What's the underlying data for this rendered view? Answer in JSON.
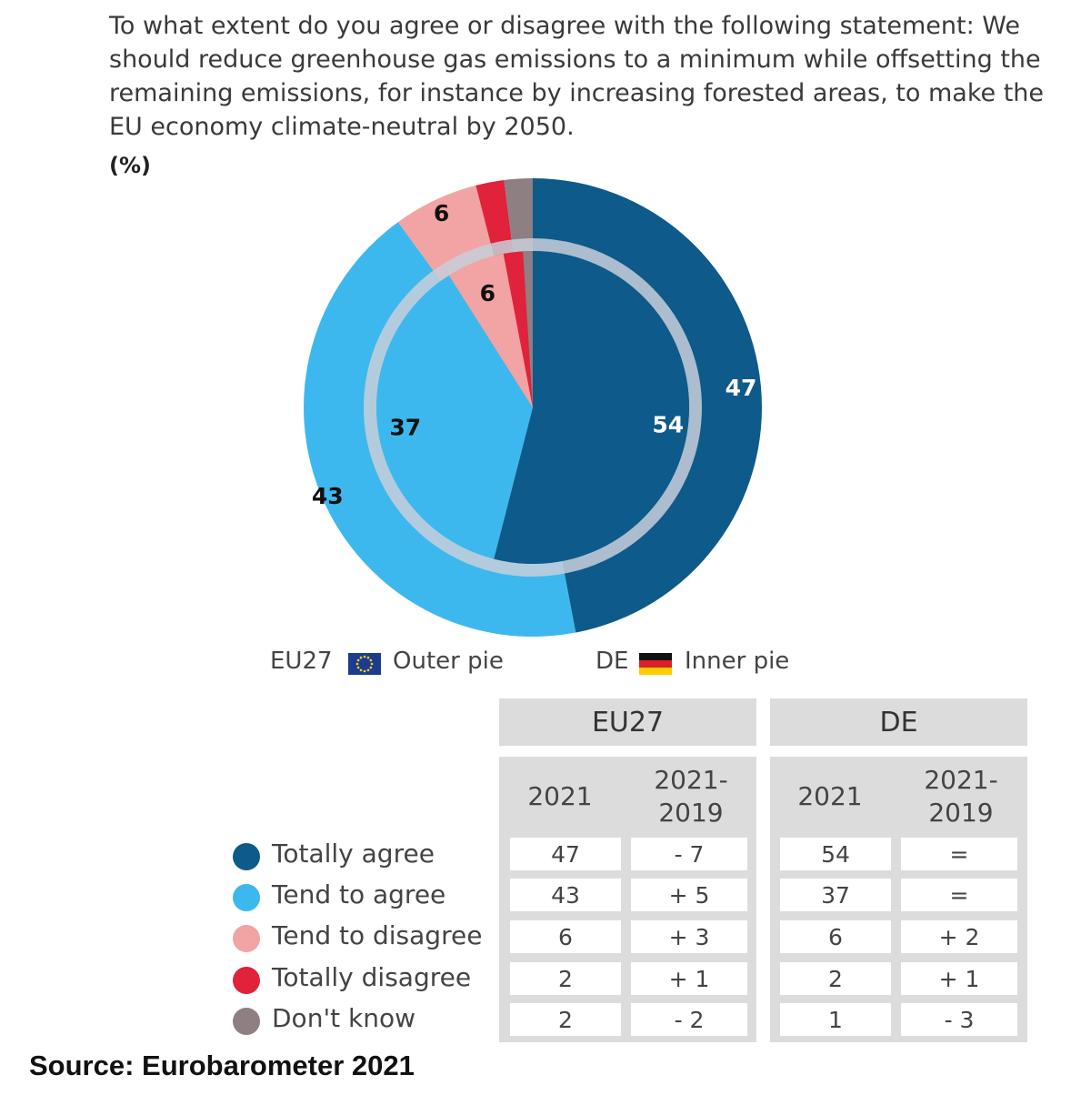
{
  "question": "To what extent do you agree or disagree with the following statement: We should reduce greenhouse gas emissions to a minimum while offsetting the remaining emissions, for instance by increasing forested areas, to make the EU economy climate-neutral by 2050.",
  "unit": "(%)",
  "legend": {
    "outer_region": "EU27",
    "outer_label": "Outer pie",
    "inner_region": "DE",
    "inner_label": "Inner pie"
  },
  "table": {
    "groups": [
      "EU27",
      "DE"
    ],
    "col_year": "2021",
    "col_change": "2021-\n2019",
    "rows": [
      {
        "label": "Totally agree",
        "eu_2021": "47",
        "eu_change": "- 7",
        "de_2021": "54",
        "de_change": "="
      },
      {
        "label": "Tend to agree",
        "eu_2021": "43",
        "eu_change": "+ 5",
        "de_2021": "37",
        "de_change": "="
      },
      {
        "label": "Tend to disagree",
        "eu_2021": "6",
        "eu_change": "+ 3",
        "de_2021": "6",
        "de_change": "+ 2"
      },
      {
        "label": "Totally disagree",
        "eu_2021": "2",
        "eu_change": "+ 1",
        "de_2021": "2",
        "de_change": "+ 1"
      },
      {
        "label": "Don't know",
        "eu_2021": "2",
        "eu_change": "- 2",
        "de_2021": "1",
        "de_change": "- 3"
      }
    ]
  },
  "source": "Source: Eurobarometer 2021",
  "chart_data": {
    "type": "pie",
    "categories": [
      "Totally agree",
      "Tend to agree",
      "Tend to disagree",
      "Totally disagree",
      "Don't know"
    ],
    "colors": [
      "#0e5a8a",
      "#3db8ee",
      "#f2a3a3",
      "#e0223a",
      "#8e7f82"
    ],
    "series": [
      {
        "name": "EU27",
        "values": [
          47,
          43,
          6,
          2,
          2
        ],
        "labels": [
          "47",
          "43",
          "6",
          "",
          ""
        ]
      },
      {
        "name": "DE",
        "values": [
          54,
          37,
          6,
          2,
          1
        ],
        "labels": [
          "54",
          "37",
          "6",
          "",
          ""
        ]
      }
    ],
    "label_colors": [
      "#ffffff",
      "#111111",
      "#111111",
      "#111111",
      "#111111"
    ]
  }
}
